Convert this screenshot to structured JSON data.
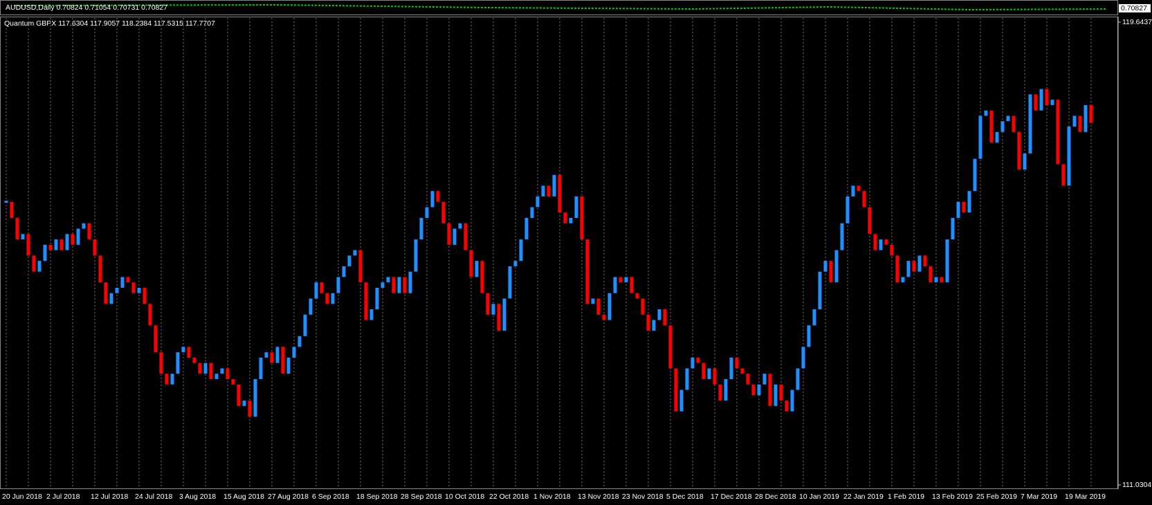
{
  "chart_data": {
    "type": "candlestick",
    "title": "Quantum GBPX 117.6304 117.9057 118.2384 117.5315 117.7707",
    "categories": [
      "20 Jun 2018",
      null,
      null,
      null,
      null,
      null,
      null,
      null,
      "2 Jul 2018",
      null,
      null,
      null,
      null,
      null,
      null,
      null,
      "12 Jul 2018",
      null,
      null,
      null,
      null,
      null,
      null,
      null,
      "24 Jul 2018",
      null,
      null,
      null,
      null,
      null,
      null,
      null,
      "3 Aug 2018",
      null,
      null,
      null,
      null,
      null,
      null,
      null,
      "15 Aug 2018",
      null,
      null,
      null,
      null,
      null,
      null,
      null,
      "27 Aug 2018",
      null,
      null,
      null,
      null,
      null,
      null,
      null,
      "6 Sep 2018",
      null,
      null,
      null,
      null,
      null,
      null,
      null,
      "18 Sep 2018",
      null,
      null,
      null,
      null,
      null,
      null,
      null,
      "28 Sep 2018",
      null,
      null,
      null,
      null,
      null,
      null,
      null,
      "10 Oct 2018",
      null,
      null,
      null,
      null,
      null,
      null,
      null,
      "22 Oct 2018",
      null,
      null,
      null,
      null,
      null,
      null,
      null,
      "1 Nov 2018",
      null,
      null,
      null,
      null,
      null,
      null,
      null,
      "13 Nov 2018",
      null,
      null,
      null,
      null,
      null,
      null,
      null,
      "23 Nov 2018",
      null,
      null,
      null,
      null,
      null,
      null,
      null,
      "5 Dec 2018",
      null,
      null,
      null,
      null,
      null,
      null,
      null,
      "17 Dec 2018",
      null,
      null,
      null,
      null,
      null,
      null,
      null,
      "28 Dec 2018",
      null,
      null,
      null,
      null,
      null,
      null,
      null,
      "10 Jan 2019",
      null,
      null,
      null,
      null,
      null,
      null,
      null,
      "22 Jan 2019",
      null,
      null,
      null,
      null,
      null,
      null,
      null,
      "1 Feb 2019",
      null,
      null,
      null,
      null,
      null,
      null,
      null,
      "13 Feb 2019",
      null,
      null,
      null,
      null,
      null,
      null,
      null,
      "25 Feb 2019",
      null,
      null,
      null,
      null,
      null,
      null,
      null,
      "7 Mar 2019",
      null,
      null,
      null,
      null,
      null,
      null,
      null,
      "19 Mar 2019",
      null,
      null,
      null,
      null
    ],
    "values": [
      116.3,
      116.0,
      115.6,
      115.7,
      115.3,
      115.0,
      115.2,
      115.5,
      115.4,
      115.6,
      115.4,
      115.7,
      115.5,
      115.8,
      115.9,
      115.6,
      115.3,
      114.8,
      114.4,
      114.6,
      114.7,
      114.9,
      114.8,
      114.6,
      114.7,
      114.4,
      114.0,
      113.5,
      113.1,
      112.9,
      113.1,
      113.5,
      113.6,
      113.4,
      113.3,
      113.1,
      113.3,
      113.0,
      113.1,
      113.2,
      113.0,
      112.9,
      112.5,
      112.6,
      112.3,
      113.0,
      113.4,
      113.5,
      113.3,
      113.6,
      113.1,
      113.4,
      113.6,
      113.8,
      114.2,
      114.5,
      114.8,
      114.6,
      114.4,
      114.6,
      114.9,
      115.1,
      115.3,
      115.4,
      114.8,
      114.1,
      114.3,
      114.7,
      114.8,
      114.9,
      114.6,
      114.9,
      114.6,
      115.0,
      115.6,
      116.0,
      116.2,
      116.5,
      116.3,
      115.9,
      115.5,
      115.8,
      115.9,
      115.4,
      114.9,
      115.2,
      114.6,
      114.2,
      114.4,
      113.9,
      114.5,
      115.1,
      115.2,
      115.6,
      116.0,
      116.2,
      116.4,
      116.6,
      116.4,
      116.8,
      116.1,
      115.9,
      116.0,
      116.4,
      115.6,
      114.4,
      114.5,
      114.2,
      114.1,
      114.6,
      114.9,
      114.8,
      114.9,
      114.6,
      114.5,
      114.2,
      113.9,
      114.1,
      114.3,
      114.0,
      113.2,
      112.4,
      112.8,
      113.2,
      113.4,
      113.3,
      113.0,
      113.2,
      112.9,
      112.6,
      113.0,
      113.4,
      113.2,
      113.1,
      112.9,
      112.7,
      112.9,
      113.1,
      112.5,
      112.9,
      112.6,
      112.4,
      112.8,
      113.2,
      113.6,
      114.0,
      114.3,
      115.0,
      115.2,
      114.8,
      115.4,
      115.9,
      116.4,
      116.6,
      116.5,
      116.2,
      115.7,
      115.4,
      115.6,
      115.5,
      115.3,
      114.8,
      114.9,
      115.2,
      115.0,
      115.3,
      115.1,
      114.8,
      114.9,
      114.8,
      115.6,
      116.0,
      116.3,
      116.1,
      116.5,
      117.1,
      117.9,
      118.0,
      117.4,
      117.6,
      117.8,
      117.9,
      117.6,
      116.9,
      117.2,
      118.3,
      118.0,
      118.4,
      118.1,
      118.2,
      117.0,
      116.6,
      117.7,
      117.9,
      117.6,
      118.1,
      117.7707
    ],
    "ylim": [
      111.0304,
      119.6437
    ],
    "yticks": [
      111.0304,
      119.6437
    ],
    "up_color": "#1e90ff",
    "down_color": "#ff0000",
    "grid": true
  },
  "top_panel": {
    "title": "AUDUSD,Daily  0.70824 0.71054 0.70731 0.70827",
    "price_label": "0.70827"
  }
}
